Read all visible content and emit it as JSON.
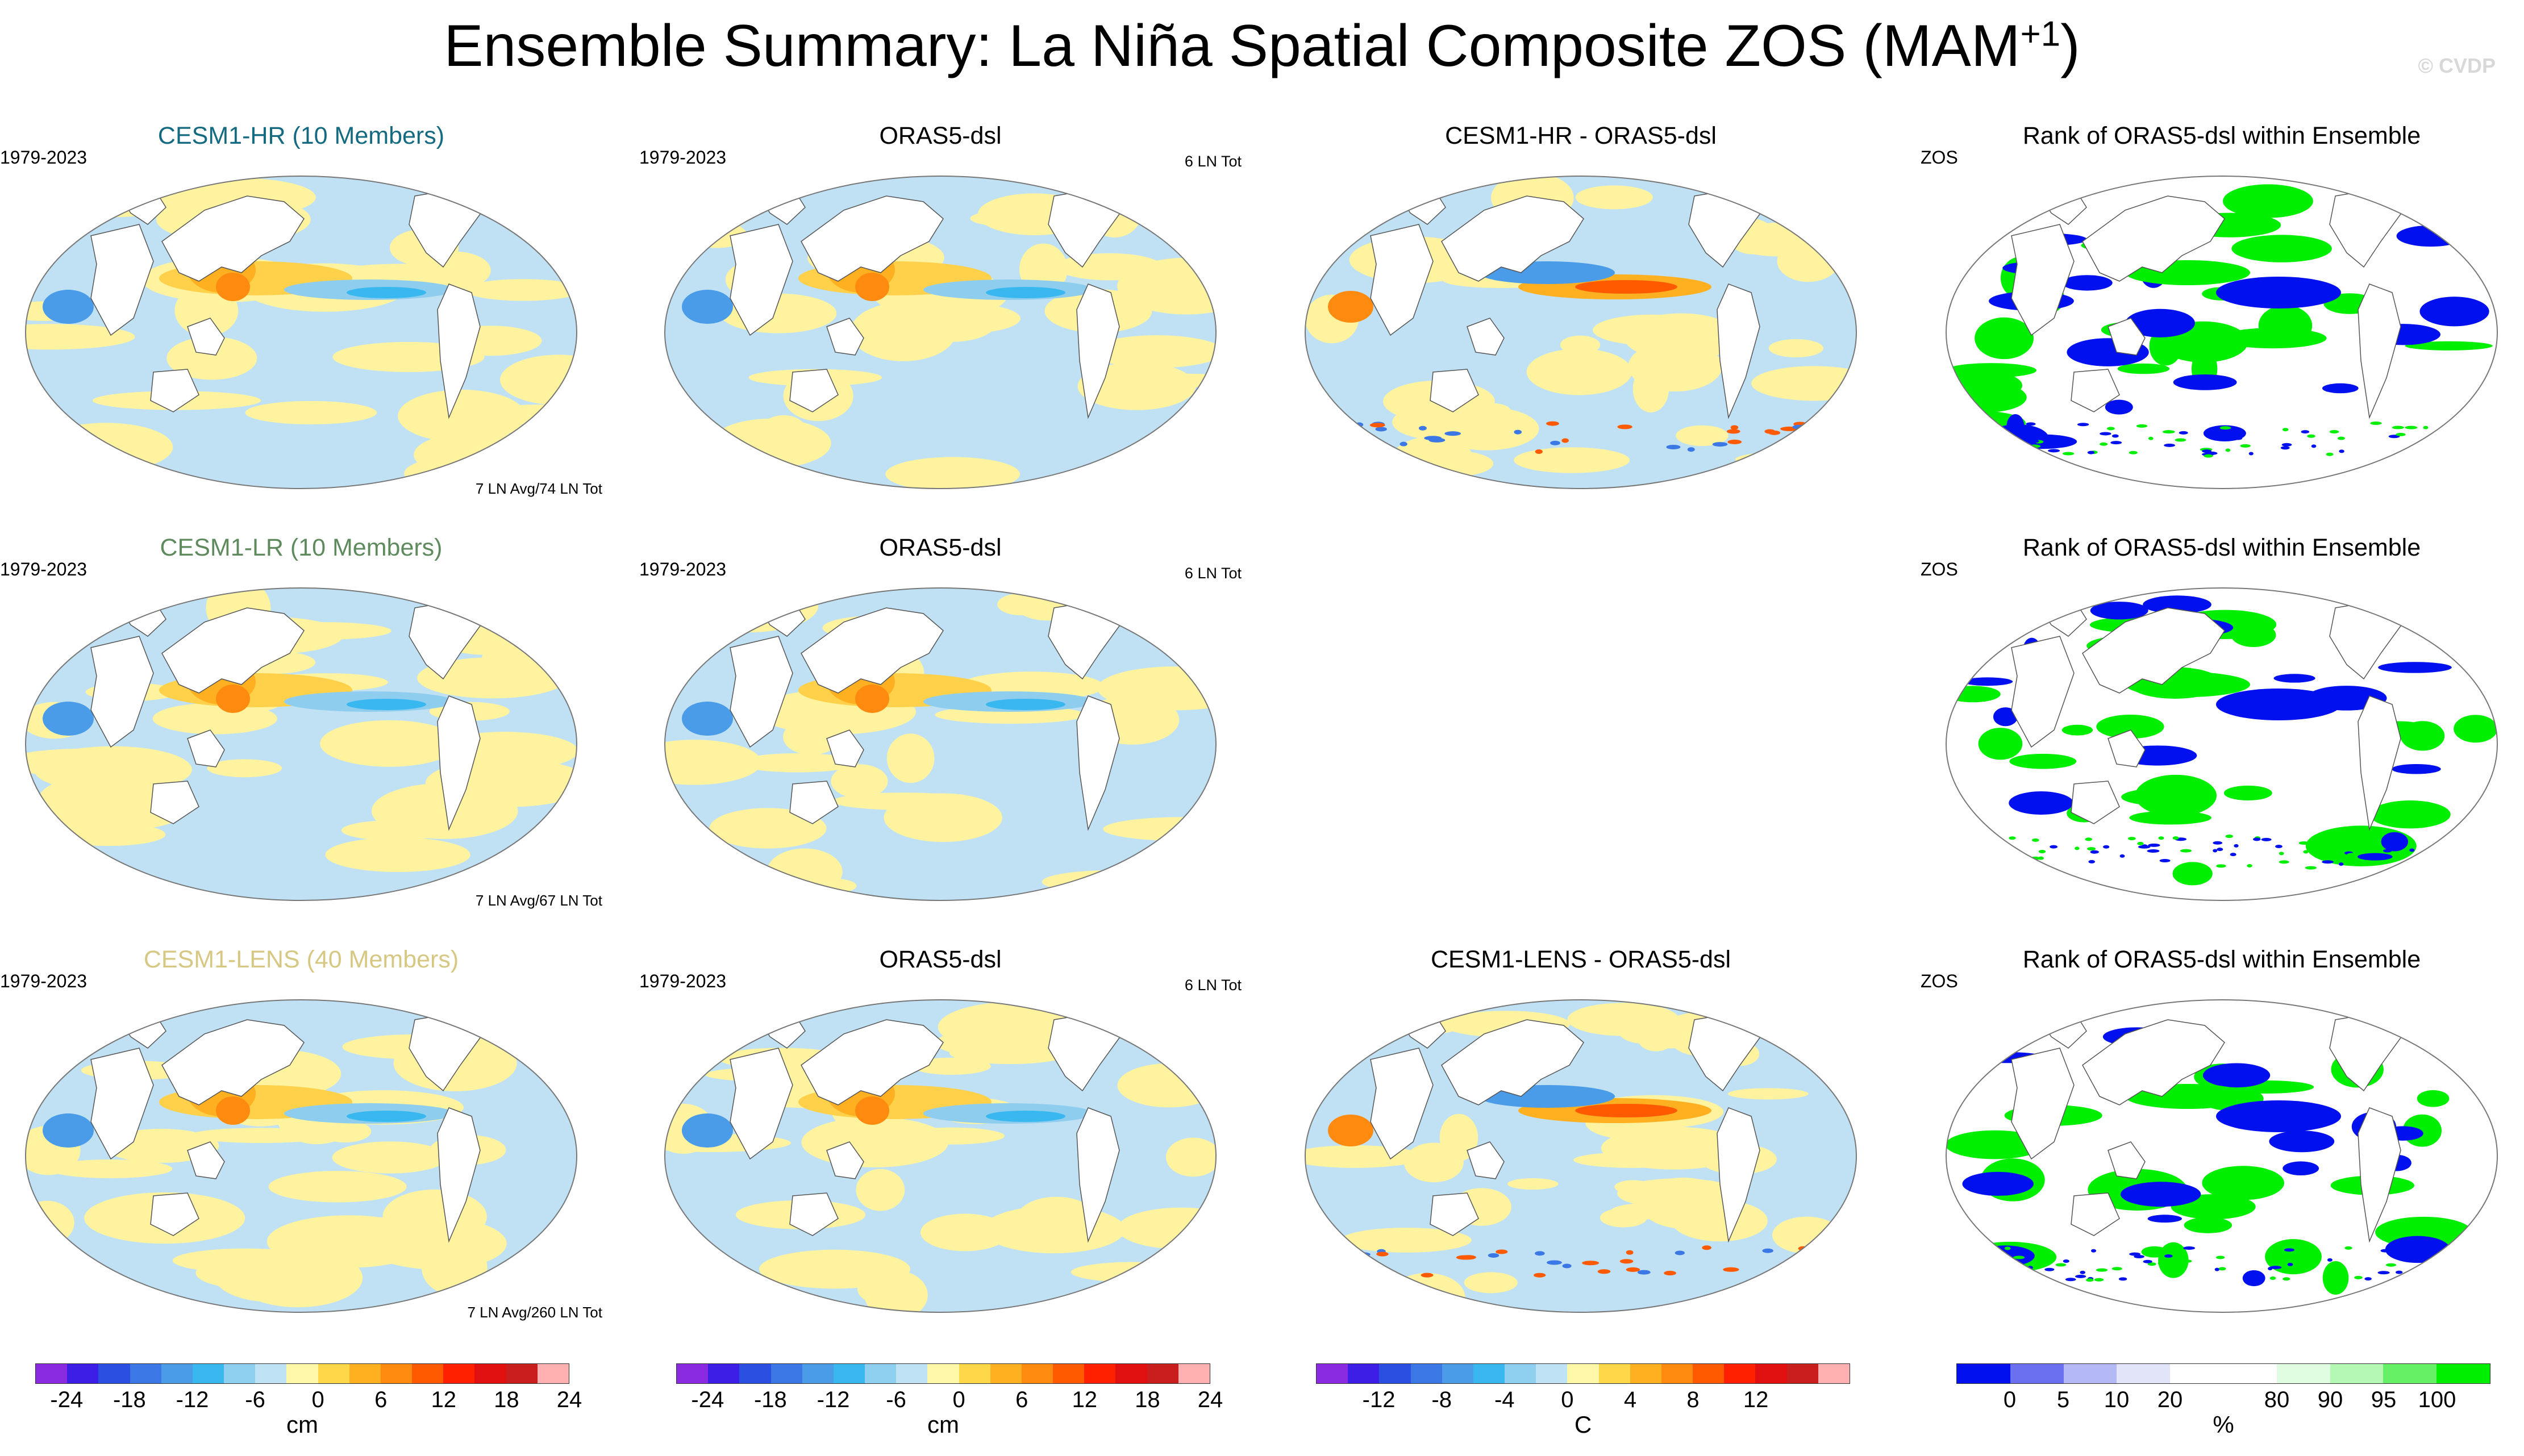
{
  "title": "Ensemble Summary: La Niña Spatial Composite ZOS (MAM",
  "title_sup": "+1",
  "title_end": ")",
  "copyright": "© CVDP",
  "rows": [
    {
      "model": {
        "title": "CESM1-HR (10 Members)",
        "period": "1979-2023",
        "count": "7 LN Avg/74 LN Tot"
      },
      "obs": {
        "title": "ORAS5-dsl",
        "period": "1979-2023",
        "count": "6 LN Tot"
      },
      "diff": {
        "title": "CESM1-HR - ORAS5-dsl"
      },
      "rank": {
        "title": "Rank of ORAS5-dsl within Ensemble",
        "var": "ZOS"
      }
    },
    {
      "model": {
        "title": "CESM1-LR (10 Members)",
        "period": "1979-2023",
        "count": "7 LN Avg/67 LN Tot"
      },
      "obs": {
        "title": "ORAS5-dsl",
        "period": "1979-2023",
        "count": "6 LN Tot"
      },
      "rank": {
        "title": "Rank of ORAS5-dsl within Ensemble",
        "var": "ZOS"
      }
    },
    {
      "model": {
        "title": "CESM1-LENS (40 Members)",
        "period": "1979-2023",
        "count": "7 LN Avg/260 LN Tot"
      },
      "obs": {
        "title": "ORAS5-dsl",
        "period": "1979-2023",
        "count": "6 LN Tot"
      },
      "diff": {
        "title": "CESM1-LENS - ORAS5-dsl"
      },
      "rank": {
        "title": "Rank of ORAS5-dsl within Ensemble",
        "var": "ZOS"
      }
    }
  ],
  "colorbars": {
    "cm": {
      "colors": [
        "#8a2be2",
        "#3c1ee6",
        "#2b4fe0",
        "#3b78e6",
        "#4a9be8",
        "#39b8f0",
        "#8fd0f0",
        "#bfe3f5",
        "#fff7a8",
        "#ffd84a",
        "#ffb020",
        "#ff8a10",
        "#ff5a00",
        "#ff2000",
        "#e01010",
        "#c81e1e",
        "#ffb0b0"
      ],
      "ticks": [
        "-24",
        "-18",
        "-12",
        "-6",
        "0",
        "6",
        "12",
        "18",
        "24"
      ],
      "unit": "cm"
    },
    "c": {
      "colors": [
        "#8a2be2",
        "#3c1ee6",
        "#2b4fe0",
        "#3b78e6",
        "#4a9be8",
        "#39b8f0",
        "#8fd0f0",
        "#bfe3f5",
        "#fff7a8",
        "#ffd84a",
        "#ffb020",
        "#ff8a10",
        "#ff5a00",
        "#ff2000",
        "#e01010",
        "#c81e1e",
        "#ffb0b0"
      ],
      "ticks": [
        "-12",
        "-8",
        "-4",
        "0",
        "4",
        "8",
        "12"
      ],
      "unit": "C"
    },
    "pct": {
      "colors": [
        "#0010ee",
        "#6a70f0",
        "#b4b8f4",
        "#e2e4fa",
        "#ffffff",
        "#ffffff",
        "#e0fce0",
        "#b4f8b4",
        "#66f066",
        "#00ee00"
      ],
      "ticks": [
        "0",
        "5",
        "10",
        "20",
        "80",
        "90",
        "95",
        "100"
      ],
      "unit": "%"
    }
  },
  "colors": {
    "land": "#ffffff",
    "coast": "#555555",
    "warm": "#fff3a0",
    "cool": "#bfe1f3",
    "rank_high": "#00ee00",
    "rank_low": "#0010ee"
  }
}
